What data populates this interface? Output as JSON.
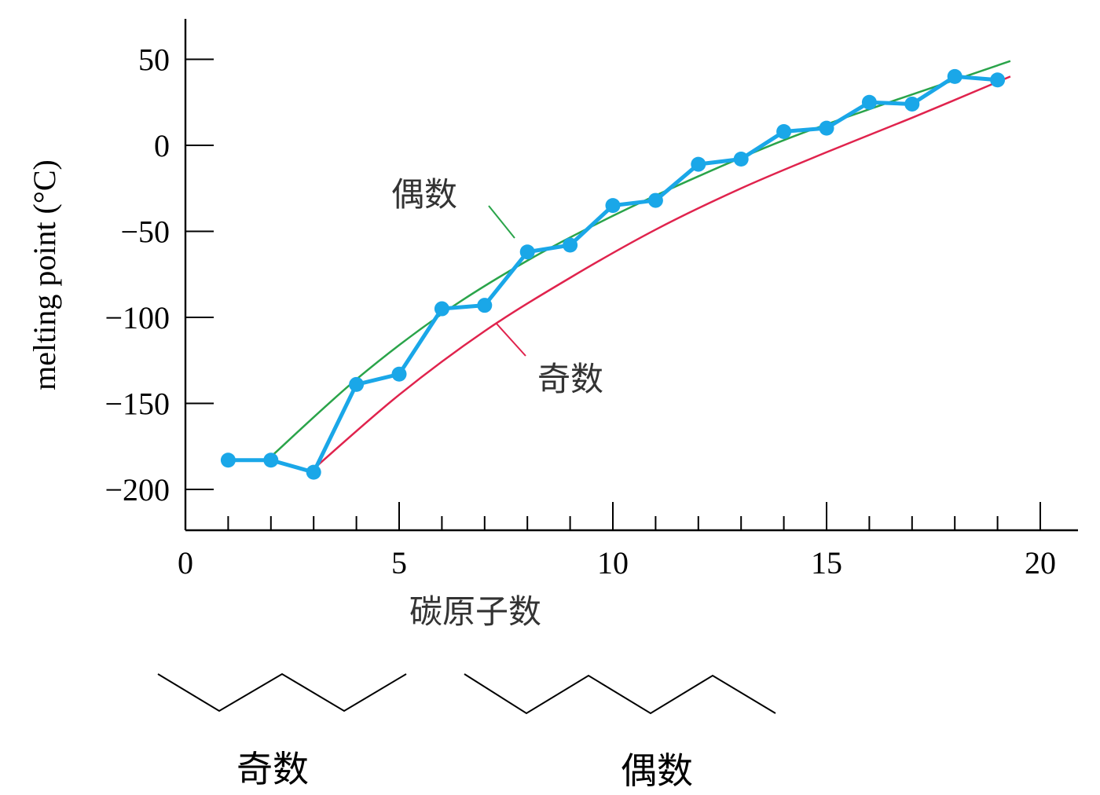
{
  "chart_data": {
    "type": "line",
    "title": "",
    "xlabel": "碳原子数",
    "ylabel": "melting point (°C)",
    "xlim": [
      0,
      21
    ],
    "ylim": [
      -225,
      72
    ],
    "x_ticks": [
      0,
      5,
      10,
      15,
      20
    ],
    "y_ticks": [
      50,
      0,
      -50,
      -100,
      -150,
      -200
    ],
    "y_tick_labels": [
      "50",
      "0",
      "−50",
      "−100",
      "−150",
      "−200"
    ],
    "grid": false,
    "series": [
      {
        "color": "#1aa7e8",
        "x": [
          1,
          2,
          3,
          4,
          5,
          6,
          7,
          8,
          9,
          10,
          11,
          12,
          13,
          14,
          15,
          16,
          17,
          18,
          19
        ],
        "y": [
          -183,
          -183,
          -190,
          -139,
          -133,
          -95,
          -93,
          -62,
          -58,
          -35,
          -32,
          -11,
          -8,
          8,
          10,
          25,
          24,
          40,
          38
        ]
      }
    ],
    "trend_curves": [
      {
        "label": "偶数",
        "color": "#2aa44a",
        "x": [
          2,
          4,
          6,
          8,
          10,
          12,
          14,
          16,
          18,
          19.3
        ],
        "y": [
          -181,
          -136,
          -98,
          -67,
          -41,
          -18,
          3,
          21,
          38,
          49
        ]
      },
      {
        "label": "奇数",
        "color": "#e0234d",
        "x": [
          3,
          5,
          7,
          9,
          11,
          13,
          15,
          17,
          19.3
        ],
        "y": [
          -188,
          -145,
          -108,
          -77,
          -49,
          -25,
          -4,
          16,
          40
        ]
      }
    ]
  },
  "annotations": {
    "even_curve_label": "偶数",
    "odd_curve_label": "奇数"
  },
  "structures": {
    "odd_label": "奇数",
    "even_label": "偶数"
  }
}
